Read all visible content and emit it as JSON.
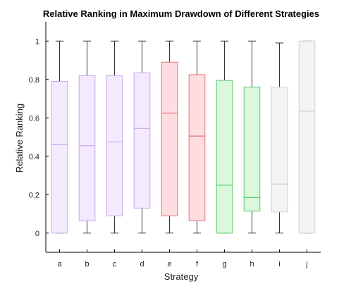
{
  "chart_data": {
    "type": "box",
    "title": "Relative Ranking in Maximum Drawdown of Different Strategies",
    "xlabel": "Strategy",
    "ylabel": "Relative Ranking",
    "ylim": [
      -0.1,
      1.1
    ],
    "yticks": [
      "0",
      "0.2",
      "0.4",
      "0.6",
      "0.8",
      "1"
    ],
    "categories": [
      "a",
      "b",
      "c",
      "d",
      "e",
      "f",
      "g",
      "h",
      "i",
      "j"
    ],
    "boxes": [
      {
        "category": "a",
        "min": 0,
        "q1": 0,
        "median": 0.46,
        "q3": 0.79,
        "max": 1,
        "color": "#c9a8ef",
        "fill": "#f3ebfd"
      },
      {
        "category": "b",
        "min": 0,
        "q1": 0.065,
        "median": 0.455,
        "q3": 0.82,
        "max": 1,
        "color": "#c9a8ef",
        "fill": "#f3ebfd"
      },
      {
        "category": "c",
        "min": 0,
        "q1": 0.09,
        "median": 0.475,
        "q3": 0.82,
        "max": 1,
        "color": "#c9a8ef",
        "fill": "#f3ebfd"
      },
      {
        "category": "d",
        "min": 0,
        "q1": 0.13,
        "median": 0.545,
        "q3": 0.835,
        "max": 1,
        "color": "#c9a8ef",
        "fill": "#f3ebfd"
      },
      {
        "category": "e",
        "min": 0,
        "q1": 0.09,
        "median": 0.625,
        "q3": 0.89,
        "max": 1,
        "color": "#e8707c",
        "fill": "#fddde0"
      },
      {
        "category": "f",
        "min": 0,
        "q1": 0.065,
        "median": 0.505,
        "q3": 0.825,
        "max": 1,
        "color": "#e8707c",
        "fill": "#fddde0"
      },
      {
        "category": "g",
        "min": 0,
        "q1": 0,
        "median": 0.25,
        "q3": 0.795,
        "max": 1,
        "color": "#5cc86a",
        "fill": "#dbf7dd"
      },
      {
        "category": "h",
        "min": 0,
        "q1": 0.115,
        "median": 0.185,
        "q3": 0.76,
        "max": 1,
        "color": "#5cc86a",
        "fill": "#dbf7dd"
      },
      {
        "category": "i",
        "min": 0,
        "q1": 0.11,
        "median": 0.255,
        "q3": 0.76,
        "max": 0.99,
        "color": "#cfcfcf",
        "fill": "#f4f4f4"
      },
      {
        "category": "j",
        "min": 0,
        "q1": 0,
        "median": 0.635,
        "q3": 1,
        "max": 1,
        "color": "#cfcfcf",
        "fill": "#f4f4f4"
      }
    ],
    "whisker_color": "#333333",
    "grid": false,
    "legend": "none"
  }
}
